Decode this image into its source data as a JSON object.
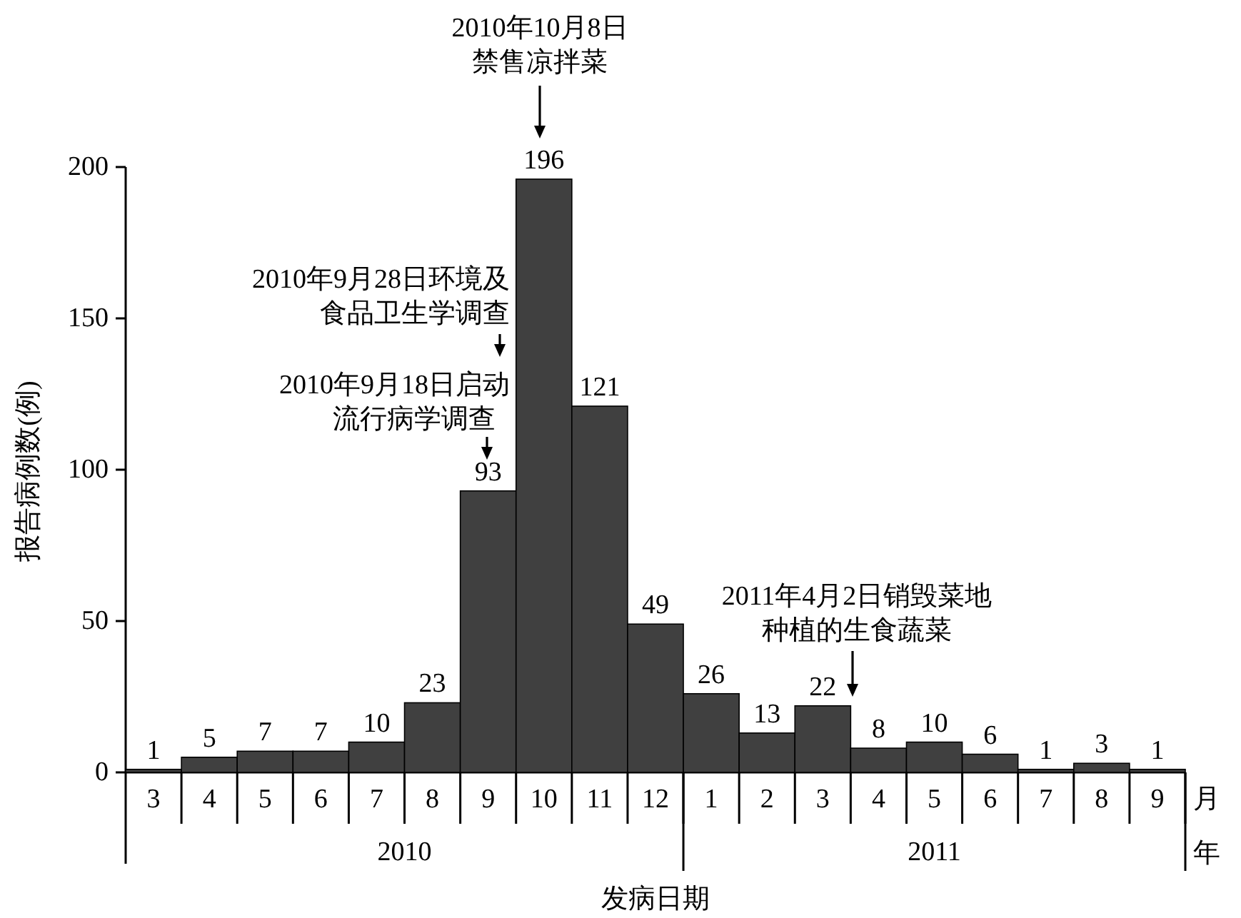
{
  "chart_data": {
    "type": "bar",
    "xlabel": "发病日期",
    "ylabel": "报告病例数(例)",
    "categories": [
      "3",
      "4",
      "5",
      "6",
      "7",
      "8",
      "9",
      "10",
      "11",
      "12",
      "1",
      "2",
      "3",
      "4",
      "5",
      "6",
      "7",
      "8",
      "9"
    ],
    "values": [
      1,
      5,
      7,
      7,
      10,
      23,
      93,
      196,
      121,
      49,
      26,
      13,
      22,
      8,
      10,
      6,
      1,
      3,
      1
    ],
    "color": "#404040",
    "data_labels": true,
    "ylim": [
      0,
      200
    ],
    "yticks": [
      0,
      50,
      100,
      150,
      200
    ],
    "annotations": [
      "2010年10月8日",
      "禁售凉拌菜",
      "2010年9月28日环境及",
      "食品卫生学调查",
      "2010年9月18日启动",
      "流行病学调查",
      "2011年4月2日销毁菜地",
      "种植的生食蔬菜",
      "2010",
      "2011",
      "月",
      "年"
    ]
  }
}
